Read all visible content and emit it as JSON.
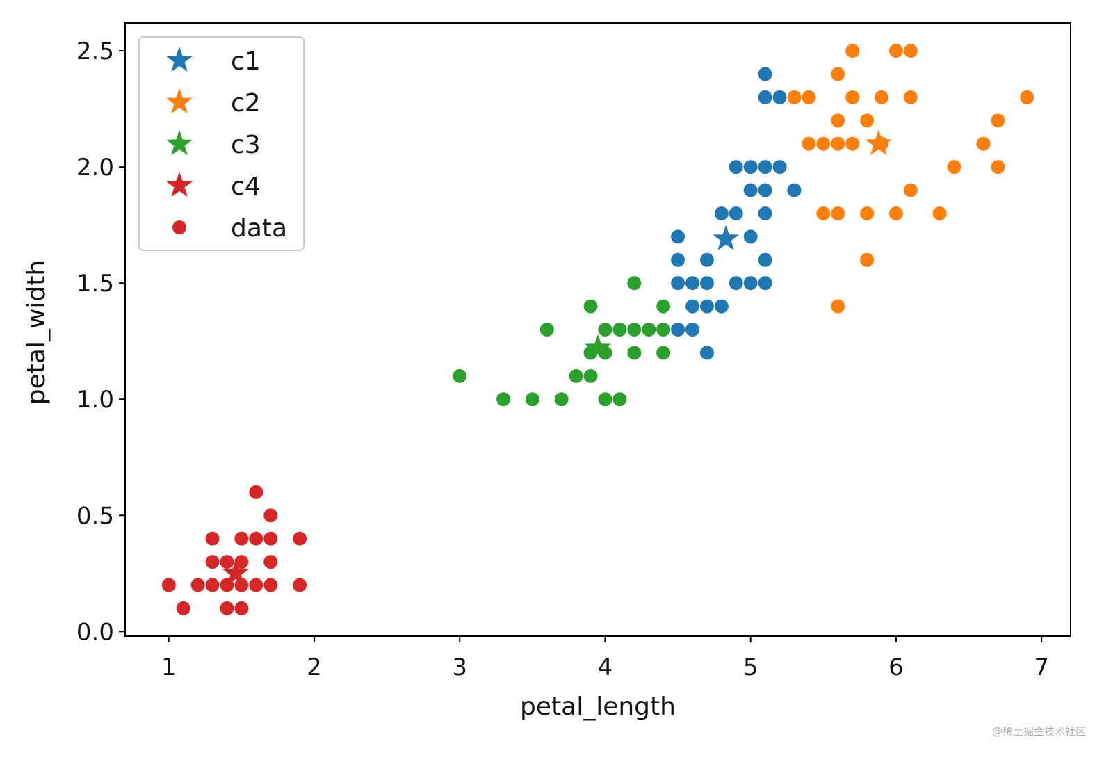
{
  "chart_data": {
    "type": "scatter",
    "xlabel": "petal_length",
    "ylabel": "petal_width",
    "xlim": [
      0.7,
      7.2
    ],
    "ylim": [
      -0.02,
      2.62
    ],
    "xticks": [
      1,
      2,
      3,
      4,
      5,
      6,
      7
    ],
    "xtick_labels": [
      "1",
      "2",
      "3",
      "4",
      "5",
      "6",
      "7"
    ],
    "yticks": [
      0.0,
      0.5,
      1.0,
      1.5,
      2.0,
      2.5
    ],
    "ytick_labels": [
      "0.0",
      "0.5",
      "1.0",
      "1.5",
      "2.0",
      "2.5"
    ],
    "grid": false,
    "legend_position": "top-left",
    "legend": [
      {
        "label": "c1",
        "marker": "star",
        "color": "#1f77b4"
      },
      {
        "label": "c2",
        "marker": "star",
        "color": "#ff7f0e"
      },
      {
        "label": "c3",
        "marker": "star",
        "color": "#2ca02c"
      },
      {
        "label": "c4",
        "marker": "star",
        "color": "#d62728"
      },
      {
        "label": "data",
        "marker": "dot",
        "color": "#d62728"
      }
    ],
    "centroids": [
      {
        "name": "c1",
        "color": "#1f77b4",
        "x": 4.83,
        "y": 1.69
      },
      {
        "name": "c2",
        "color": "#ff7f0e",
        "x": 5.88,
        "y": 2.1
      },
      {
        "name": "c3",
        "color": "#2ca02c",
        "x": 3.95,
        "y": 1.22
      },
      {
        "name": "c4",
        "color": "#d62728",
        "x": 1.46,
        "y": 0.25
      }
    ],
    "series": [
      {
        "color": "#1f77b4",
        "points": [
          [
            5.1,
            2.4
          ],
          [
            5.1,
            2.3
          ],
          [
            5.2,
            2.3
          ],
          [
            4.9,
            2.0
          ],
          [
            5.0,
            2.0
          ],
          [
            5.1,
            2.0
          ],
          [
            5.2,
            2.0
          ],
          [
            5.0,
            1.9
          ],
          [
            5.1,
            1.9
          ],
          [
            5.3,
            1.9
          ],
          [
            4.8,
            1.8
          ],
          [
            4.9,
            1.8
          ],
          [
            5.1,
            1.8
          ],
          [
            4.5,
            1.7
          ],
          [
            5.0,
            1.7
          ],
          [
            4.5,
            1.6
          ],
          [
            4.7,
            1.6
          ],
          [
            5.1,
            1.6
          ],
          [
            4.5,
            1.5
          ],
          [
            4.6,
            1.5
          ],
          [
            4.7,
            1.5
          ],
          [
            4.9,
            1.5
          ],
          [
            5.0,
            1.5
          ],
          [
            5.1,
            1.5
          ],
          [
            4.6,
            1.4
          ],
          [
            4.7,
            1.4
          ],
          [
            4.8,
            1.4
          ],
          [
            4.5,
            1.3
          ],
          [
            4.6,
            1.3
          ],
          [
            4.7,
            1.2
          ]
        ]
      },
      {
        "color": "#ff7f0e",
        "points": [
          [
            5.7,
            2.5
          ],
          [
            6.0,
            2.5
          ],
          [
            6.1,
            2.5
          ],
          [
            5.6,
            2.4
          ],
          [
            5.3,
            2.3
          ],
          [
            5.4,
            2.3
          ],
          [
            5.7,
            2.3
          ],
          [
            5.9,
            2.3
          ],
          [
            6.1,
            2.3
          ],
          [
            6.9,
            2.3
          ],
          [
            5.6,
            2.2
          ],
          [
            5.8,
            2.2
          ],
          [
            6.7,
            2.2
          ],
          [
            5.4,
            2.1
          ],
          [
            5.5,
            2.1
          ],
          [
            5.6,
            2.1
          ],
          [
            5.7,
            2.1
          ],
          [
            5.9,
            2.1
          ],
          [
            6.6,
            2.1
          ],
          [
            6.4,
            2.0
          ],
          [
            6.7,
            2.0
          ],
          [
            6.1,
            1.9
          ],
          [
            5.5,
            1.8
          ],
          [
            5.6,
            1.8
          ],
          [
            5.8,
            1.8
          ],
          [
            6.0,
            1.8
          ],
          [
            6.3,
            1.8
          ],
          [
            5.8,
            1.6
          ],
          [
            5.6,
            1.4
          ]
        ]
      },
      {
        "color": "#2ca02c",
        "points": [
          [
            4.2,
            1.5
          ],
          [
            3.9,
            1.4
          ],
          [
            4.4,
            1.4
          ],
          [
            3.6,
            1.3
          ],
          [
            4.0,
            1.3
          ],
          [
            4.1,
            1.3
          ],
          [
            4.2,
            1.3
          ],
          [
            4.3,
            1.3
          ],
          [
            4.4,
            1.3
          ],
          [
            3.9,
            1.2
          ],
          [
            4.0,
            1.2
          ],
          [
            4.2,
            1.2
          ],
          [
            4.4,
            1.2
          ],
          [
            3.0,
            1.1
          ],
          [
            3.8,
            1.1
          ],
          [
            3.9,
            1.1
          ],
          [
            3.3,
            1.0
          ],
          [
            3.5,
            1.0
          ],
          [
            3.7,
            1.0
          ],
          [
            4.0,
            1.0
          ],
          [
            4.1,
            1.0
          ]
        ]
      },
      {
        "color": "#d62728",
        "points": [
          [
            1.6,
            0.6
          ],
          [
            1.7,
            0.5
          ],
          [
            1.3,
            0.4
          ],
          [
            1.5,
            0.4
          ],
          [
            1.6,
            0.4
          ],
          [
            1.7,
            0.4
          ],
          [
            1.9,
            0.4
          ],
          [
            1.3,
            0.3
          ],
          [
            1.4,
            0.3
          ],
          [
            1.5,
            0.3
          ],
          [
            1.7,
            0.3
          ],
          [
            1.0,
            0.2
          ],
          [
            1.2,
            0.2
          ],
          [
            1.3,
            0.2
          ],
          [
            1.4,
            0.2
          ],
          [
            1.5,
            0.2
          ],
          [
            1.6,
            0.2
          ],
          [
            1.7,
            0.2
          ],
          [
            1.9,
            0.2
          ],
          [
            1.1,
            0.1
          ],
          [
            1.4,
            0.1
          ],
          [
            1.5,
            0.1
          ]
        ]
      }
    ]
  },
  "watermark": "@稀土掘金技术社区"
}
